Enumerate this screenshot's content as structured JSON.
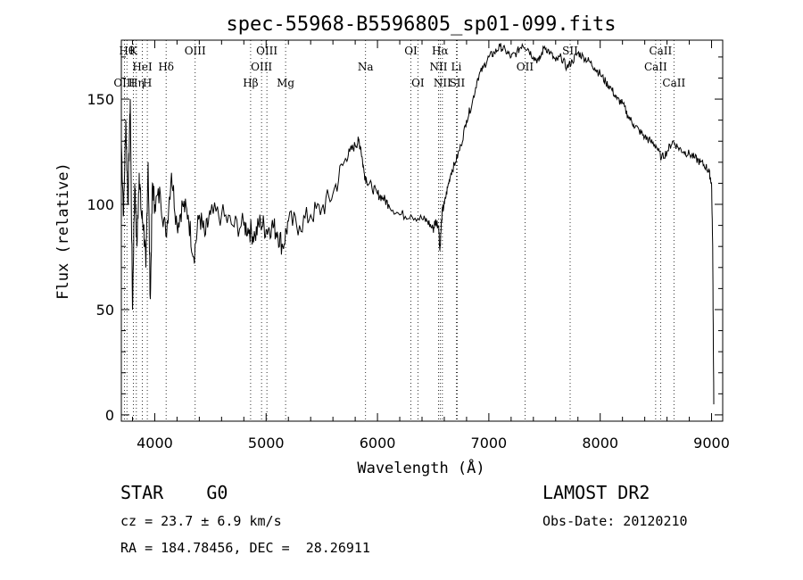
{
  "chart_data": {
    "type": "line",
    "title": "spec-55968-B5596805_sp01-099.fits",
    "xlabel": "Wavelength (Å)",
    "ylabel": "Flux (relative)",
    "xlim": [
      3700,
      9100
    ],
    "ylim": [
      -3,
      178
    ],
    "xticks": [
      4000,
      5000,
      6000,
      7000,
      8000,
      9000
    ],
    "yticks": [
      0,
      50,
      100,
      150
    ],
    "grid": false,
    "series": [
      {
        "values_x": [
          3700,
          3720,
          3740,
          3760,
          3780,
          3800,
          3820,
          3840,
          3860,
          3880,
          3900,
          3920,
          3940,
          3960,
          3980,
          4000,
          4050,
          4100,
          4150,
          4200,
          4250,
          4300,
          4350,
          4400,
          4450,
          4500,
          4600,
          4700,
          4800,
          4850,
          4900,
          4950,
          5000,
          5050,
          5100,
          5150,
          5200,
          5300,
          5400,
          5500,
          5600,
          5700,
          5750,
          5800,
          5830,
          5850,
          5880,
          5900,
          5950,
          6000,
          6050,
          6100,
          6200,
          6300,
          6400,
          6450,
          6500,
          6520,
          6550,
          6560,
          6580,
          6600,
          6630,
          6660,
          6700,
          6750,
          6800,
          6850,
          6900,
          6950,
          7000,
          7050,
          7100,
          7150,
          7200,
          7250,
          7300,
          7350,
          7400,
          7450,
          7500,
          7550,
          7600,
          7650,
          7700,
          7750,
          7800,
          7850,
          7900,
          7950,
          8000,
          8050,
          8100,
          8150,
          8200,
          8250,
          8300,
          8350,
          8400,
          8450,
          8500,
          8550,
          8600,
          8650,
          8700,
          8750,
          8800,
          8850,
          8900,
          8950,
          8980,
          9000,
          9010,
          9020
        ],
        "values_y": [
          130,
          95,
          140,
          100,
          150,
          50,
          110,
          80,
          115,
          95,
          90,
          70,
          120,
          55,
          110,
          100,
          105,
          85,
          115,
          90,
          100,
          95,
          75,
          95,
          85,
          95,
          95,
          90,
          90,
          88,
          85,
          92,
          88,
          90,
          87,
          80,
          92,
          90,
          95,
          98,
          105,
          120,
          125,
          128,
          130,
          127,
          115,
          112,
          108,
          105,
          103,
          100,
          95,
          95,
          93,
          92,
          88,
          92,
          90,
          78,
          96,
          100,
          108,
          115,
          120,
          128,
          140,
          148,
          160,
          165,
          170,
          172,
          175,
          173,
          170,
          172,
          176,
          174,
          170,
          168,
          175,
          172,
          168,
          170,
          165,
          168,
          172,
          170,
          168,
          165,
          162,
          158,
          155,
          150,
          148,
          142,
          138,
          135,
          132,
          130,
          128,
          122,
          125,
          130,
          127,
          125,
          124,
          122,
          120,
          118,
          115,
          110,
          80,
          5
        ]
      }
    ],
    "lines": [
      {
        "label": "OIII",
        "x": 3727,
        "row": 2
      },
      {
        "label": "Hθ",
        "x": 3750,
        "row": 0
      },
      {
        "label": "K",
        "x": 3808,
        "row": 0
      },
      {
        "label": "Hη",
        "x": 3835,
        "row": 2
      },
      {
        "label": "HeI",
        "x": 3889,
        "row": 1
      },
      {
        "label": "H",
        "x": 3933,
        "row": 2
      },
      {
        "label": "Hδ",
        "x": 4102,
        "row": 1
      },
      {
        "label": "OIII",
        "x": 4363,
        "row": 0
      },
      {
        "label": "Hβ",
        "x": 4861,
        "row": 2
      },
      {
        "label": "OIII",
        "x": 4959,
        "row": 1
      },
      {
        "label": "OIII",
        "x": 5007,
        "row": 0
      },
      {
        "label": "Mg",
        "x": 5175,
        "row": 2
      },
      {
        "label": "Na",
        "x": 5893,
        "row": 1
      },
      {
        "label": "OI",
        "x": 6300,
        "row": 0
      },
      {
        "label": "OI",
        "x": 6363,
        "row": 2
      },
      {
        "label": "NII",
        "x": 6548,
        "row": 1
      },
      {
        "label": "Hα",
        "x": 6563,
        "row": 0
      },
      {
        "label": "NII",
        "x": 6583,
        "row": 2
      },
      {
        "label": "Li",
        "x": 6708,
        "row": 1
      },
      {
        "label": "SII",
        "x": 6716,
        "row": 2
      },
      {
        "label": "OII",
        "x": 7325,
        "row": 1
      },
      {
        "label": "SII",
        "x": 7730,
        "row": 0
      },
      {
        "label": "CaII",
        "x": 8498,
        "row": 1
      },
      {
        "label": "CaII",
        "x": 8542,
        "row": 0
      },
      {
        "label": "CaII",
        "x": 8662,
        "row": 2
      }
    ]
  },
  "info": {
    "object_class": "STAR    G0",
    "survey": "LAMOST DR2",
    "cz": "cz = 23.7 ± 6.9 km/s",
    "obs_date": "Obs-Date: 20120210",
    "radec": "RA = 184.78456, DEC =  28.26911"
  }
}
